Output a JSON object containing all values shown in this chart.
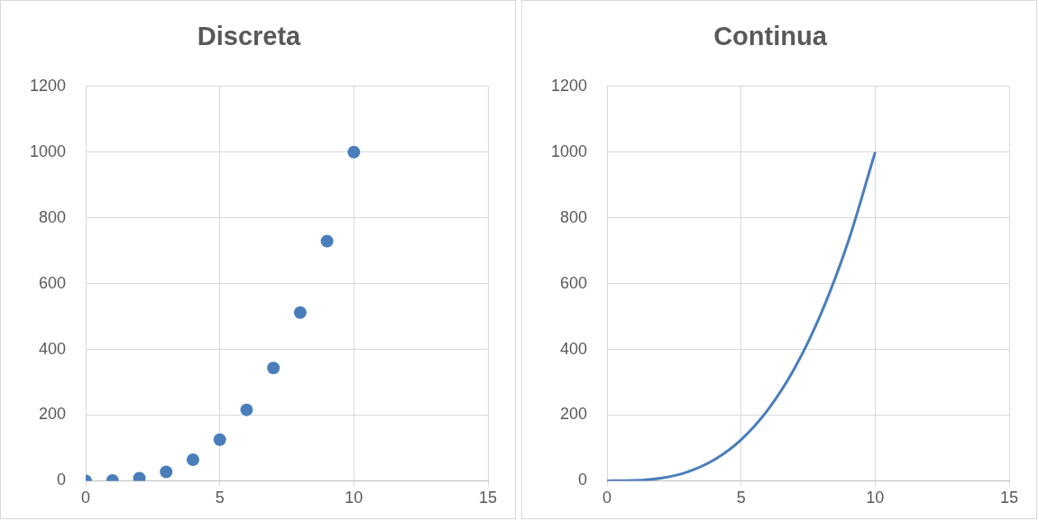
{
  "chart_data": [
    {
      "type": "scatter",
      "title": "Discreta",
      "x": [
        0,
        1,
        2,
        3,
        4,
        5,
        6,
        7,
        8,
        9,
        10
      ],
      "series": [
        {
          "color": "#4a7ebb",
          "values": [
            0,
            1,
            8,
            27,
            64,
            125,
            216,
            343,
            512,
            729,
            1000
          ]
        }
      ],
      "xlim": [
        0,
        15
      ],
      "xticks": [
        0,
        5,
        10,
        15
      ],
      "ylim": [
        0,
        1200
      ],
      "yticks": [
        0,
        200,
        400,
        600,
        800,
        1000,
        1200
      ],
      "grid": true,
      "legend": false,
      "marker": "circle"
    },
    {
      "type": "line",
      "title": "Continua",
      "x": [
        0,
        1,
        2,
        3,
        4,
        5,
        6,
        7,
        8,
        9,
        10
      ],
      "series": [
        {
          "color": "#4a7ebb",
          "values": [
            0,
            1,
            8,
            27,
            64,
            125,
            216,
            343,
            512,
            729,
            1000
          ]
        }
      ],
      "xlim": [
        0,
        15
      ],
      "xticks": [
        0,
        5,
        10,
        15
      ],
      "ylim": [
        0,
        1200
      ],
      "yticks": [
        0,
        200,
        400,
        600,
        800,
        1000,
        1200
      ],
      "grid": true,
      "legend": false,
      "marker": "none",
      "line_style": "solid"
    }
  ]
}
